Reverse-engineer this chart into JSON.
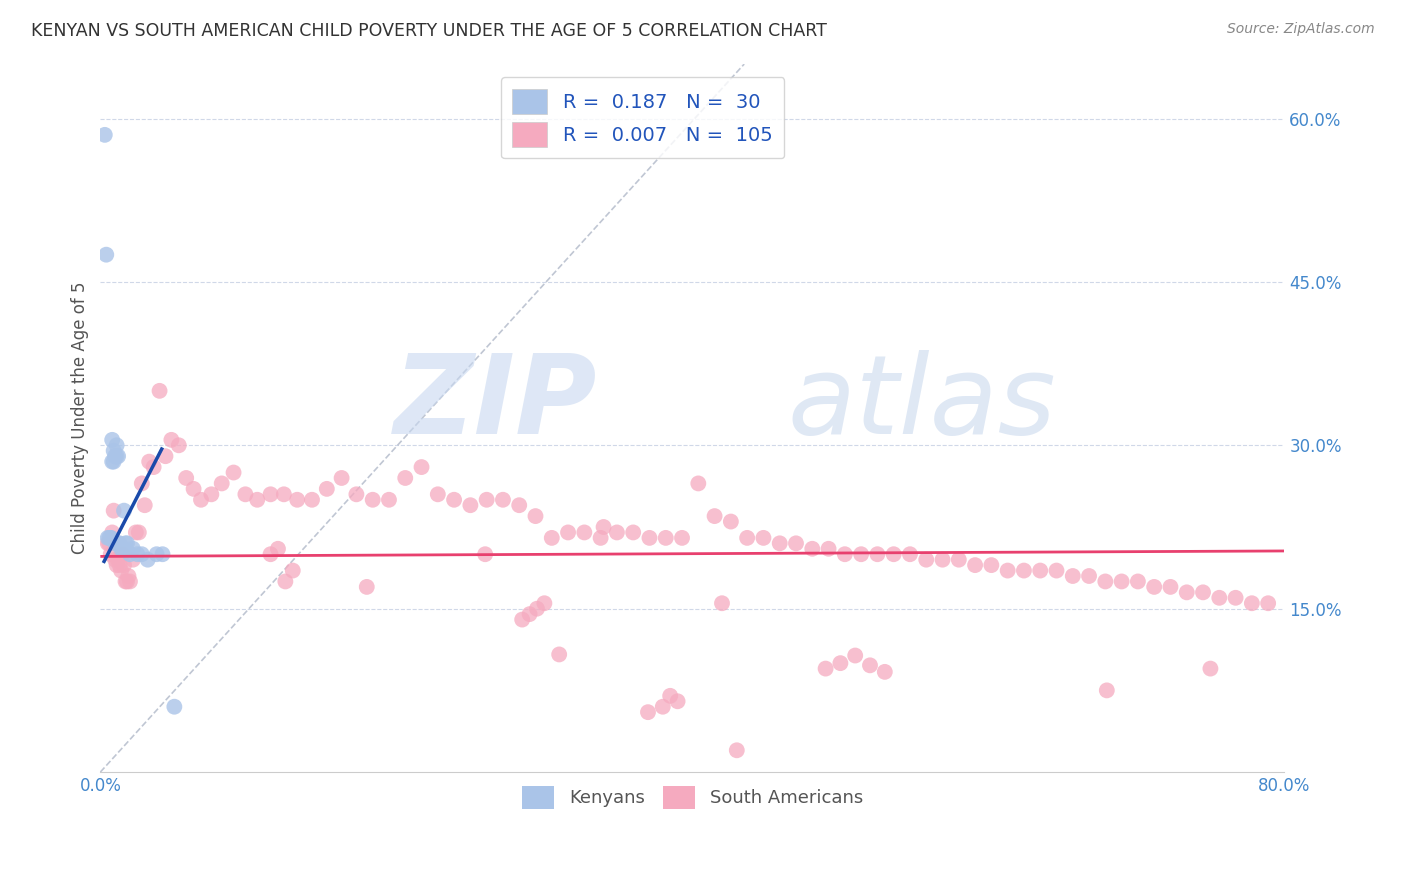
{
  "title": "KENYAN VS SOUTH AMERICAN CHILD POVERTY UNDER THE AGE OF 5 CORRELATION CHART",
  "source": "Source: ZipAtlas.com",
  "ylabel": "Child Poverty Under the Age of 5",
  "xlim": [
    0,
    0.8
  ],
  "ylim": [
    0,
    0.65
  ],
  "kenyan_R": "0.187",
  "kenyan_N": "30",
  "sa_R": "0.007",
  "sa_N": "105",
  "kenyan_color": "#aac4e8",
  "sa_color": "#f5aabf",
  "kenyan_line_color": "#1a4aaa",
  "sa_line_color": "#e8406e",
  "diag_color": "#b0b8c8",
  "watermark_color": "#c8d8f0",
  "watermark_zip": "ZIP",
  "watermark_atlas": "atlas",
  "background_color": "#ffffff",
  "grid_color": "#d0d8e8",
  "ytick_color": "#4488cc",
  "xtick_color": "#4488cc",
  "kenyan_x": [
    0.003,
    0.004,
    0.005,
    0.006,
    0.007,
    0.007,
    0.008,
    0.008,
    0.009,
    0.009,
    0.01,
    0.01,
    0.011,
    0.011,
    0.012,
    0.012,
    0.013,
    0.014,
    0.015,
    0.016,
    0.017,
    0.018,
    0.02,
    0.022,
    0.025,
    0.028,
    0.032,
    0.038,
    0.042,
    0.05
  ],
  "kenyan_y": [
    0.585,
    0.475,
    0.215,
    0.215,
    0.215,
    0.215,
    0.305,
    0.285,
    0.295,
    0.285,
    0.29,
    0.21,
    0.3,
    0.29,
    0.29,
    0.21,
    0.21,
    0.205,
    0.205,
    0.24,
    0.21,
    0.21,
    0.2,
    0.205,
    0.2,
    0.2,
    0.195,
    0.2,
    0.2,
    0.06
  ],
  "sa_x": [
    0.005,
    0.006,
    0.007,
    0.008,
    0.009,
    0.01,
    0.011,
    0.012,
    0.013,
    0.014,
    0.015,
    0.016,
    0.017,
    0.018,
    0.019,
    0.02,
    0.022,
    0.024,
    0.026,
    0.028,
    0.03,
    0.033,
    0.036,
    0.04,
    0.044,
    0.048,
    0.053,
    0.058,
    0.063,
    0.068,
    0.075,
    0.082,
    0.09,
    0.098,
    0.106,
    0.115,
    0.124,
    0.133,
    0.143,
    0.153,
    0.163,
    0.173,
    0.184,
    0.195,
    0.206,
    0.217,
    0.228,
    0.239,
    0.25,
    0.261,
    0.272,
    0.283,
    0.294,
    0.305,
    0.316,
    0.327,
    0.338,
    0.349,
    0.36,
    0.371,
    0.382,
    0.393,
    0.404,
    0.415,
    0.426,
    0.437,
    0.448,
    0.459,
    0.47,
    0.481,
    0.492,
    0.503,
    0.514,
    0.525,
    0.536,
    0.547,
    0.558,
    0.569,
    0.58,
    0.591,
    0.602,
    0.613,
    0.624,
    0.635,
    0.646,
    0.657,
    0.668,
    0.679,
    0.69,
    0.701,
    0.712,
    0.723,
    0.734,
    0.745,
    0.756,
    0.767,
    0.778,
    0.789,
    0.34,
    0.26,
    0.18,
    0.42,
    0.31
  ],
  "sa_y": [
    0.21,
    0.21,
    0.2,
    0.22,
    0.24,
    0.195,
    0.19,
    0.195,
    0.19,
    0.185,
    0.2,
    0.19,
    0.175,
    0.175,
    0.18,
    0.175,
    0.195,
    0.22,
    0.22,
    0.265,
    0.245,
    0.285,
    0.28,
    0.35,
    0.29,
    0.305,
    0.3,
    0.27,
    0.26,
    0.25,
    0.255,
    0.265,
    0.275,
    0.255,
    0.25,
    0.255,
    0.255,
    0.25,
    0.25,
    0.26,
    0.27,
    0.255,
    0.25,
    0.25,
    0.27,
    0.28,
    0.255,
    0.25,
    0.245,
    0.25,
    0.25,
    0.245,
    0.235,
    0.215,
    0.22,
    0.22,
    0.215,
    0.22,
    0.22,
    0.215,
    0.215,
    0.215,
    0.265,
    0.235,
    0.23,
    0.215,
    0.215,
    0.21,
    0.21,
    0.205,
    0.205,
    0.2,
    0.2,
    0.2,
    0.2,
    0.2,
    0.195,
    0.195,
    0.195,
    0.19,
    0.19,
    0.185,
    0.185,
    0.185,
    0.185,
    0.18,
    0.18,
    0.175,
    0.175,
    0.175,
    0.17,
    0.17,
    0.165,
    0.165,
    0.16,
    0.16,
    0.155,
    0.155,
    0.225,
    0.2,
    0.17,
    0.155,
    0.108
  ],
  "sa_y_extra": [
    0.1,
    0.098,
    0.095,
    0.092,
    0.107,
    0.2,
    0.175,
    0.185,
    0.205,
    0.095,
    0.145,
    0.15,
    0.14,
    0.155,
    0.075,
    0.06,
    0.065,
    0.07,
    0.055,
    0.02
  ],
  "sa_x_extra": [
    0.5,
    0.52,
    0.49,
    0.53,
    0.51,
    0.115,
    0.125,
    0.13,
    0.12,
    0.75,
    0.29,
    0.295,
    0.285,
    0.3,
    0.68,
    0.38,
    0.39,
    0.385,
    0.37,
    0.43
  ],
  "kenyan_line_x": [
    0.002,
    0.042
  ],
  "kenyan_line_y": [
    0.192,
    0.298
  ],
  "sa_line_x": [
    0.0,
    0.8
  ],
  "sa_line_y": [
    0.198,
    0.203
  ],
  "diag_line_x": [
    0.0,
    0.435
  ],
  "diag_line_y": [
    0.0,
    0.65
  ]
}
